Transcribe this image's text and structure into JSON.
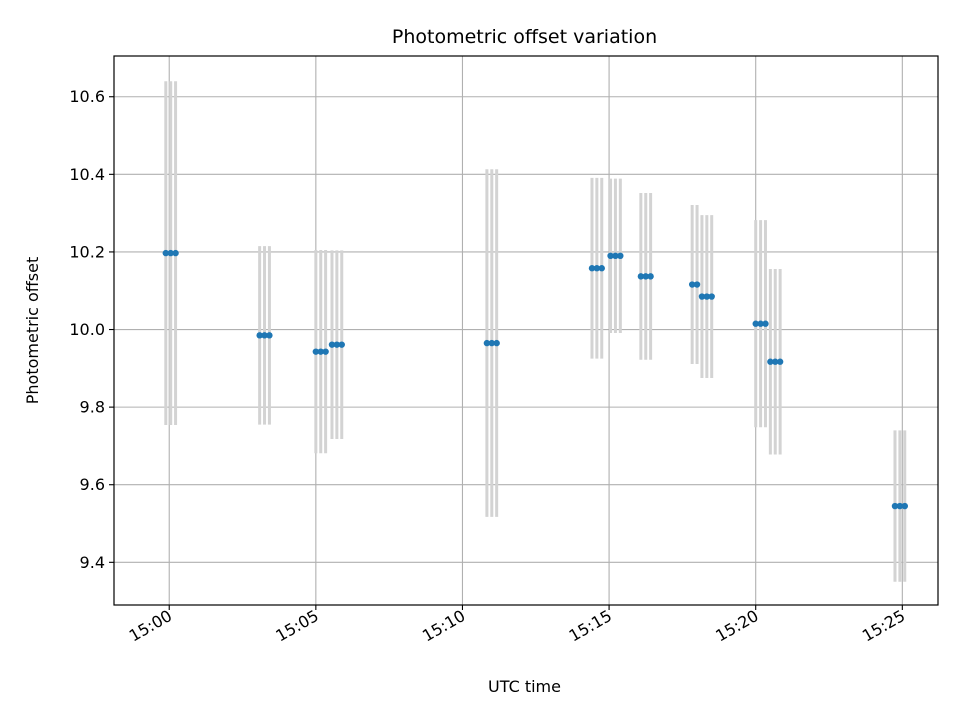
{
  "chart_data": {
    "type": "scatter",
    "title": "Photometric offset variation",
    "xlabel": "UTC time",
    "ylabel": "Photometric offset",
    "x_unit": "UTC time (HH:MM)",
    "xlim": [
      "14:58:07",
      "15:26:13"
    ],
    "ylim": [
      9.29,
      10.705
    ],
    "grid": true,
    "x_ticks": [
      "15:00",
      "15:05",
      "15:10",
      "15:15",
      "15:20",
      "15:25"
    ],
    "y_ticks": [
      9.4,
      9.6,
      9.8,
      10.0,
      10.2,
      10.4,
      10.6
    ],
    "y_tick_labels": [
      "9.4",
      "9.6",
      "9.8",
      "10.0",
      "10.2",
      "10.4",
      "10.6"
    ],
    "colors": {
      "points": "#1f77b4",
      "errorbars": "#d3d3d3",
      "grid": "#b0b0b0"
    },
    "series": [
      {
        "points": [
          {
            "x": "14:59:53",
            "y": 10.197,
            "err": 0.443
          },
          {
            "x": "15:00:03",
            "y": 10.197,
            "err": 0.443
          },
          {
            "x": "15:00:13",
            "y": 10.197,
            "err": 0.443
          },
          {
            "x": "15:03:05",
            "y": 9.985,
            "err": 0.23
          },
          {
            "x": "15:03:15",
            "y": 9.985,
            "err": 0.23
          },
          {
            "x": "15:03:25",
            "y": 9.985,
            "err": 0.23
          },
          {
            "x": "15:05:00",
            "y": 9.943,
            "err": 0.262
          },
          {
            "x": "15:05:10",
            "y": 9.943,
            "err": 0.262
          },
          {
            "x": "15:05:20",
            "y": 9.943,
            "err": 0.262
          },
          {
            "x": "15:05:33",
            "y": 9.961,
            "err": 0.243
          },
          {
            "x": "15:05:43",
            "y": 9.961,
            "err": 0.243
          },
          {
            "x": "15:05:53",
            "y": 9.961,
            "err": 0.243
          },
          {
            "x": "15:10:50",
            "y": 9.965,
            "err": 0.448
          },
          {
            "x": "15:11:00",
            "y": 9.965,
            "err": 0.448
          },
          {
            "x": "15:11:10",
            "y": 9.965,
            "err": 0.448
          },
          {
            "x": "15:14:25",
            "y": 10.158,
            "err": 0.233
          },
          {
            "x": "15:14:35",
            "y": 10.158,
            "err": 0.233
          },
          {
            "x": "15:14:45",
            "y": 10.158,
            "err": 0.233
          },
          {
            "x": "15:15:03",
            "y": 10.19,
            "err": 0.199
          },
          {
            "x": "15:15:13",
            "y": 10.19,
            "err": 0.199
          },
          {
            "x": "15:15:23",
            "y": 10.19,
            "err": 0.199
          },
          {
            "x": "15:16:05",
            "y": 10.137,
            "err": 0.215
          },
          {
            "x": "15:16:15",
            "y": 10.137,
            "err": 0.215
          },
          {
            "x": "15:16:25",
            "y": 10.137,
            "err": 0.215
          },
          {
            "x": "15:17:50",
            "y": 10.116,
            "err": 0.205
          },
          {
            "x": "15:18:00",
            "y": 10.116,
            "err": 0.205
          },
          {
            "x": "15:18:10",
            "y": 10.085,
            "err": 0.21
          },
          {
            "x": "15:18:20",
            "y": 10.085,
            "err": 0.21
          },
          {
            "x": "15:18:30",
            "y": 10.085,
            "err": 0.21
          },
          {
            "x": "15:20:00",
            "y": 10.015,
            "err": 0.267
          },
          {
            "x": "15:20:10",
            "y": 10.015,
            "err": 0.267
          },
          {
            "x": "15:20:20",
            "y": 10.015,
            "err": 0.267
          },
          {
            "x": "15:20:30",
            "y": 9.917,
            "err": 0.239
          },
          {
            "x": "15:20:40",
            "y": 9.917,
            "err": 0.239
          },
          {
            "x": "15:20:50",
            "y": 9.917,
            "err": 0.239
          },
          {
            "x": "15:24:45",
            "y": 9.545,
            "err": 0.195
          },
          {
            "x": "15:24:55",
            "y": 9.545,
            "err": 0.195
          },
          {
            "x": "15:25:05",
            "y": 9.545,
            "err": 0.195
          }
        ]
      }
    ]
  }
}
